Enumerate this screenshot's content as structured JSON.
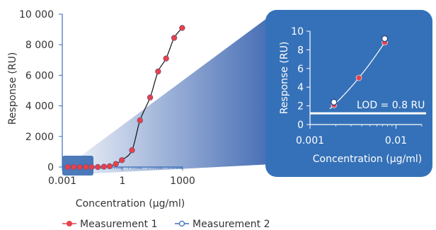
{
  "colors": {
    "measurement1": "#e5424d",
    "measurement2": "#3a6fb7",
    "inset_bg": "#3571b8",
    "wedge": "#4a6fb5",
    "curve": "#111111"
  },
  "chart_data": [
    {
      "type": "scatter",
      "xscale": "log",
      "xlabel": "Concentration (µg/ml)",
      "ylabel": "Response (RU)",
      "xlim": [
        0.001,
        1000
      ],
      "ylim": [
        0,
        10000
      ],
      "x_ticks": [
        0.001,
        1,
        1000
      ],
      "x_tick_labels": [
        "0.001",
        "1",
        "1000"
      ],
      "y_ticks": [
        0,
        2000,
        4000,
        6000,
        8000,
        10000
      ],
      "y_tick_labels": [
        "0",
        "2 000",
        "4 000",
        "6 000",
        "8 000",
        "10 000"
      ],
      "grid": false,
      "legend_position": "bottom",
      "series": [
        {
          "name": "Measurement 1",
          "x": [
            0.0019,
            0.0037,
            0.0074,
            0.015,
            0.029,
            0.059,
            0.12,
            0.23,
            0.47,
            0.94,
            3,
            7.5,
            24,
            60,
            150,
            380,
            950
          ],
          "y": [
            0,
            0,
            0,
            0,
            0,
            0,
            20,
            50,
            200,
            450,
            1100,
            3050,
            4550,
            6250,
            7100,
            8450,
            9100
          ]
        },
        {
          "name": "Measurement 2",
          "x": [
            0.0019,
            0.0037,
            0.0074,
            0.015,
            0.029,
            0.059,
            0.12,
            0.23,
            0.47,
            0.94,
            3,
            7.5,
            24,
            60,
            150,
            380,
            950
          ],
          "y": [
            0,
            0,
            0,
            0,
            0,
            0,
            20,
            50,
            200,
            450,
            1100,
            3050,
            4550,
            6250,
            7100,
            8450,
            9100
          ]
        }
      ],
      "legend": [
        "Measurement 1",
        "Measurement 2"
      ]
    },
    {
      "type": "scatter",
      "xscale": "log",
      "xlabel": "Concentration (µg/ml)",
      "ylabel": "Response (RU)",
      "xlim": [
        0.001,
        0.02
      ],
      "ylim": [
        0,
        10
      ],
      "x_ticks": [
        0.001,
        0.01
      ],
      "x_tick_labels": [
        "0.001",
        "0.01"
      ],
      "y_ticks": [
        0,
        2,
        4,
        6,
        8,
        10
      ],
      "y_tick_labels": [
        "0",
        "2",
        "4",
        "6",
        "8",
        "10"
      ],
      "series": [
        {
          "name": "Measurement 1",
          "x": [
            0.0019,
            0.0037,
            0.0074
          ],
          "y": [
            2.1,
            5.0,
            8.8
          ]
        },
        {
          "name": "Measurement 2",
          "x": [
            0.0019,
            0.0074
          ],
          "y": [
            2.4,
            9.2
          ]
        }
      ],
      "annotation": {
        "text": "LOD = 0.8 RU",
        "y": 1.2
      }
    }
  ]
}
